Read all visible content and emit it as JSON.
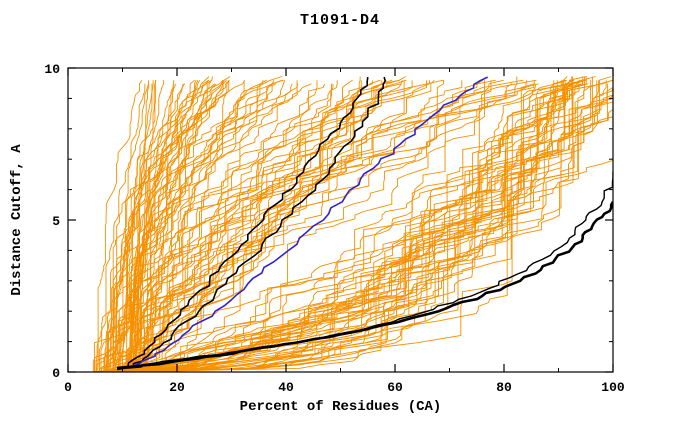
{
  "chart_data": {
    "type": "line",
    "title": "T1091-D4",
    "xlabel": "Percent of Residues (CA)",
    "ylabel": "Distance Cutoff, A",
    "xlim": [
      0,
      100
    ],
    "ylim": [
      0,
      10
    ],
    "x_major_ticks": [
      0,
      20,
      40,
      60,
      80,
      100
    ],
    "x_minor_step": 10,
    "y_major_ticks": [
      0,
      5,
      10
    ],
    "y_minor_step": 1,
    "grid": false,
    "legend": false,
    "background": "#ffffff",
    "axis_color": "#000000",
    "highlight_series": [
      {
        "name": "black-upper-1",
        "color": "#000000",
        "width": 1.6,
        "points": [
          [
            11,
            0.2
          ],
          [
            14,
            0.7
          ],
          [
            18,
            1.4
          ],
          [
            22,
            2.2
          ],
          [
            26,
            3.0
          ],
          [
            30,
            3.8
          ],
          [
            34,
            4.7
          ],
          [
            38,
            5.5
          ],
          [
            42,
            6.4
          ],
          [
            46,
            7.3
          ],
          [
            50,
            8.2
          ],
          [
            53,
            9.0
          ],
          [
            55,
            9.7
          ]
        ]
      },
      {
        "name": "black-upper-2",
        "color": "#000000",
        "width": 1.6,
        "points": [
          [
            12,
            0.2
          ],
          [
            15,
            0.6
          ],
          [
            19,
            1.2
          ],
          [
            24,
            2.0
          ],
          [
            29,
            2.9
          ],
          [
            34,
            3.8
          ],
          [
            39,
            4.8
          ],
          [
            44,
            5.8
          ],
          [
            48,
            6.7
          ],
          [
            52,
            7.6
          ],
          [
            55,
            8.4
          ],
          [
            57,
            9.1
          ],
          [
            58,
            9.7
          ]
        ]
      },
      {
        "name": "blue-model",
        "color": "#3322cc",
        "width": 1.6,
        "points": [
          [
            12,
            0.2
          ],
          [
            16,
            0.6
          ],
          [
            21,
            1.2
          ],
          [
            27,
            2.0
          ],
          [
            33,
            2.9
          ],
          [
            39,
            3.8
          ],
          [
            45,
            4.8
          ],
          [
            51,
            5.8
          ],
          [
            56,
            6.7
          ],
          [
            61,
            7.5
          ],
          [
            66,
            8.3
          ],
          [
            72,
            9.1
          ],
          [
            77,
            9.7
          ]
        ]
      },
      {
        "name": "black-lower-1",
        "color": "#000000",
        "width": 2.6,
        "points": [
          [
            9,
            0.1
          ],
          [
            18,
            0.3
          ],
          [
            28,
            0.55
          ],
          [
            38,
            0.85
          ],
          [
            48,
            1.15
          ],
          [
            58,
            1.55
          ],
          [
            68,
            2.0
          ],
          [
            76,
            2.5
          ],
          [
            83,
            3.0
          ],
          [
            89,
            3.6
          ],
          [
            93,
            4.2
          ],
          [
            96,
            4.7
          ],
          [
            98,
            5.1
          ],
          [
            100,
            5.6
          ]
        ]
      },
      {
        "name": "black-lower-2",
        "color": "#000000",
        "width": 1.4,
        "points": [
          [
            9,
            0.15
          ],
          [
            20,
            0.4
          ],
          [
            32,
            0.7
          ],
          [
            44,
            1.05
          ],
          [
            55,
            1.45
          ],
          [
            65,
            1.95
          ],
          [
            74,
            2.5
          ],
          [
            81,
            3.1
          ],
          [
            87,
            3.7
          ],
          [
            92,
            4.4
          ],
          [
            95,
            5.0
          ],
          [
            98,
            5.6
          ],
          [
            99.5,
            6.2
          ],
          [
            100,
            6.6
          ]
        ]
      }
    ],
    "ensemble": {
      "name": "orange-model-curves",
      "color": "#f59000",
      "count": 135,
      "width": 0.9,
      "seed": 13
    }
  }
}
